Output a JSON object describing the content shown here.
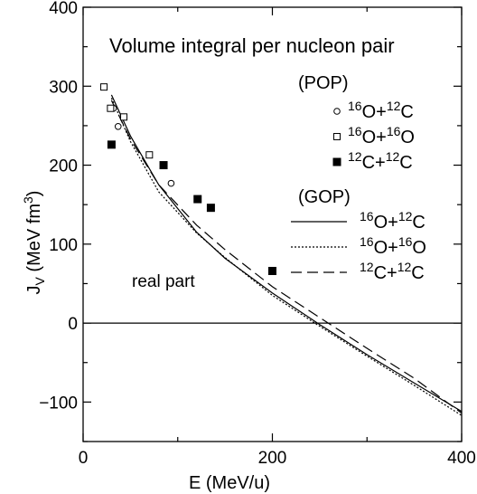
{
  "chart_data": {
    "type": "line",
    "title": "Volume integral per nucleon pair",
    "annotation": "real part",
    "xlabel": "E (MeV/u)",
    "ylabel": {
      "main": "J",
      "sub": "V",
      "unit_pre": " (MeV fm",
      "unit_sup": "3",
      "unit_post": ")"
    },
    "xlim": [
      0,
      400
    ],
    "ylim": [
      -150,
      400
    ],
    "x_ticks": [
      0,
      200,
      400
    ],
    "y_ticks": [
      -100,
      0,
      100,
      200,
      300,
      400
    ],
    "grid": false,
    "zero_line": true,
    "legend_placement": "top-right",
    "legend_groups": [
      {
        "heading": "(POP)",
        "entries": [
          {
            "marker": "open-circle",
            "label": {
              "a": "16",
              "b": "O+",
              "c": "12",
              "d": "C"
            }
          },
          {
            "marker": "open-square",
            "label": {
              "a": "16",
              "b": "O+",
              "c": "16",
              "d": "O"
            }
          },
          {
            "marker": "filled-square",
            "label": {
              "a": "12",
              "b": "C+",
              "c": "12",
              "d": "C"
            }
          }
        ]
      },
      {
        "heading": "(GOP)",
        "entries": [
          {
            "line": "solid",
            "label": {
              "a": "16",
              "b": "O+",
              "c": "12",
              "d": "C"
            }
          },
          {
            "line": "dotted",
            "label": {
              "a": "16",
              "b": "O+",
              "c": "16",
              "d": "O"
            }
          },
          {
            "line": "dashed",
            "label": {
              "a": "12",
              "b": "C+",
              "c": "12",
              "d": "C"
            }
          }
        ]
      }
    ],
    "points": [
      {
        "system": "16O+12C",
        "marker": "open-circle",
        "data": [
          [
            32,
            272
          ],
          [
            37,
            249
          ],
          [
            93,
            177
          ]
        ]
      },
      {
        "system": "16O+16O",
        "marker": "open-square",
        "data": [
          [
            22,
            299
          ],
          [
            29,
            272
          ],
          [
            43,
            261
          ],
          [
            70,
            213
          ]
        ]
      },
      {
        "system": "12C+12C",
        "marker": "filled-square",
        "data": [
          [
            30,
            226
          ],
          [
            85,
            200
          ],
          [
            121,
            157
          ],
          [
            135,
            146
          ],
          [
            200,
            66
          ]
        ]
      }
    ],
    "series": [
      {
        "system": "16O+12C",
        "dash": "solid",
        "x": [
          30,
          50,
          80,
          120,
          150,
          200,
          250,
          300,
          350,
          400
        ],
        "y": [
          289,
          237,
          175,
          115,
          82,
          38,
          -2,
          -40,
          -76,
          -112
        ]
      },
      {
        "system": "16O+16O",
        "dash": "dotted",
        "x": [
          30,
          50,
          80,
          120,
          150,
          200,
          250,
          300,
          350,
          400
        ],
        "y": [
          285,
          230,
          166,
          114,
          83,
          35,
          -4,
          -42,
          -79,
          -117
        ]
      },
      {
        "system": "12C+12C",
        "dash": "dashed",
        "x": [
          30,
          50,
          80,
          120,
          150,
          200,
          250,
          300,
          350,
          400
        ],
        "y": [
          282,
          233,
          175,
          124,
          93,
          46,
          7,
          -32,
          -70,
          -114
        ]
      }
    ]
  }
}
